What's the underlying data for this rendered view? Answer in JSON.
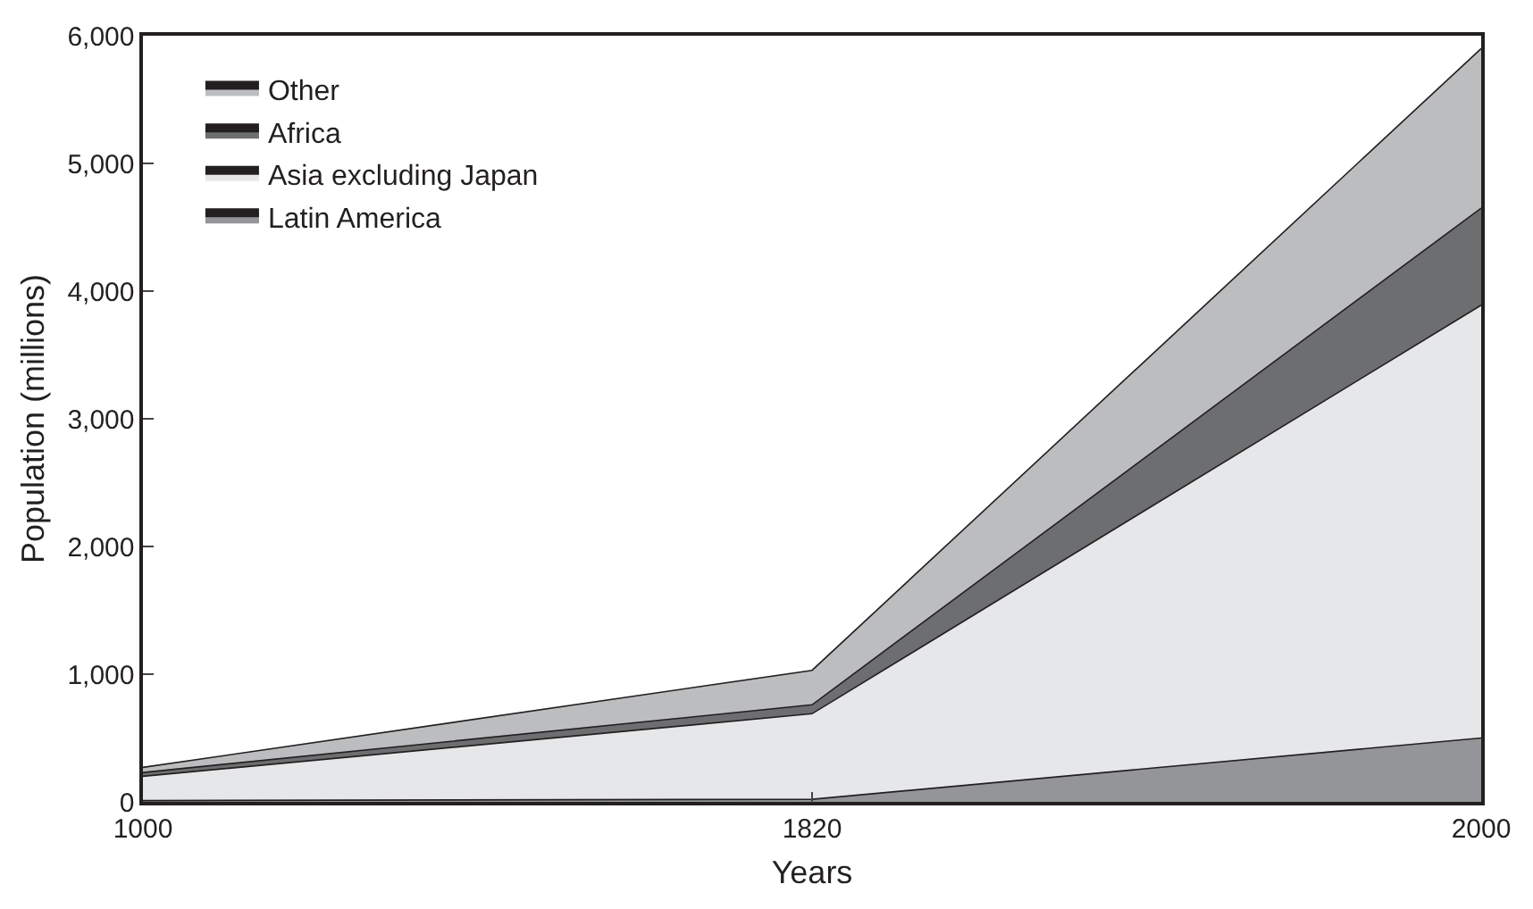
{
  "chart_data": {
    "type": "area",
    "stacked": true,
    "xlabel": "Years",
    "ylabel": "Population (millions)",
    "categories": [
      "1000",
      "1820",
      "2000"
    ],
    "series": [
      {
        "name": "Latin America",
        "color": "#939598",
        "values": [
          10,
          20,
          500
        ]
      },
      {
        "name": "Asia excluding Japan",
        "color": "#e6e7e8",
        "values": [
          190,
          670,
          3390
        ]
      },
      {
        "name": "Africa",
        "color": "#6d6e70",
        "values": [
          30,
          70,
          760
        ]
      },
      {
        "name": "Other",
        "color": "#bcbdbf",
        "values": [
          40,
          270,
          1250
        ]
      }
    ],
    "ylim": [
      0,
      6000
    ],
    "yticks": [
      {
        "value": 0,
        "label": "0"
      },
      {
        "value": 1000,
        "label": "1,000"
      },
      {
        "value": 2000,
        "label": "2,000"
      },
      {
        "value": 3000,
        "label": "3,000"
      },
      {
        "value": 4000,
        "label": "4,000"
      },
      {
        "value": 5000,
        "label": "5,000"
      },
      {
        "value": 6000,
        "label": "6,000"
      }
    ],
    "legend": "top left"
  }
}
